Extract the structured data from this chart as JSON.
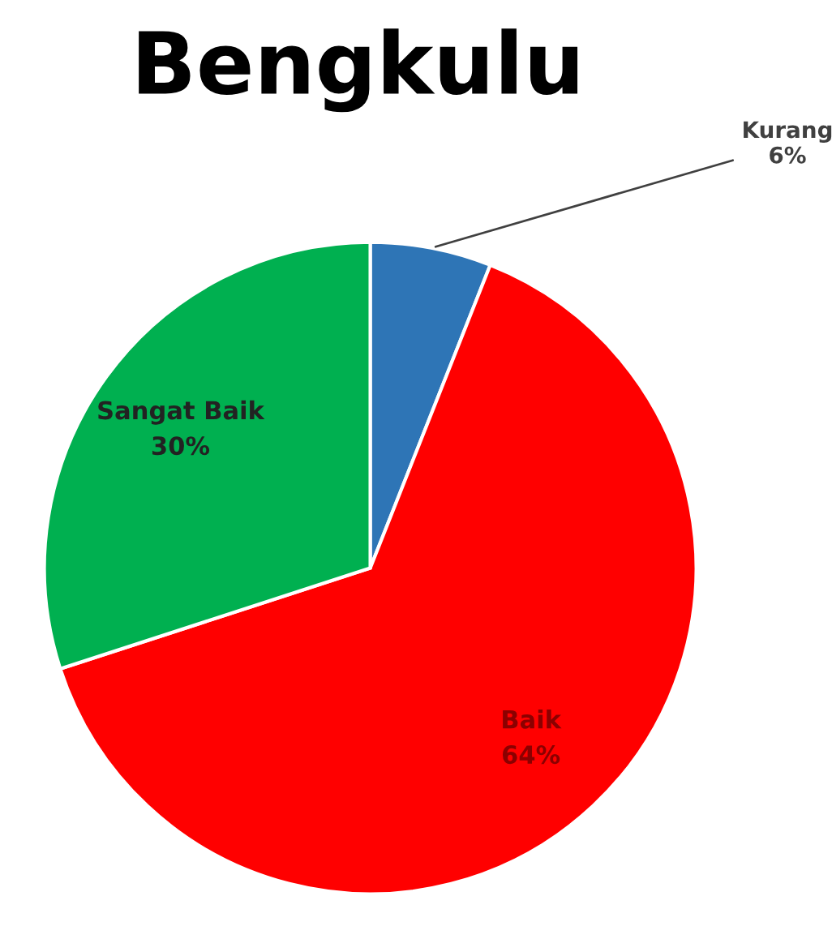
{
  "chart_data": {
    "type": "pie",
    "title": "Bengkulu",
    "categories": [
      "Kurang",
      "Baik",
      "Sangat Baik"
    ],
    "values": [
      6,
      64,
      30
    ],
    "value_labels": [
      "6%",
      "64%",
      "30%"
    ],
    "colors": [
      "#2e75b6",
      "#ff0000",
      "#00b050"
    ]
  }
}
